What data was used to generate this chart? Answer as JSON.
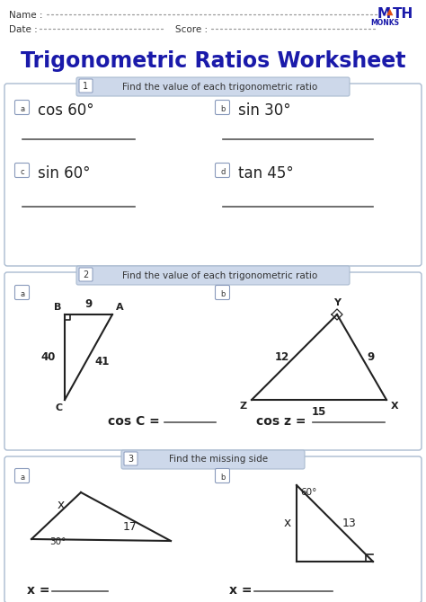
{
  "title": "Trigonometric Ratios Worksheet",
  "bg_color": "#ffffff",
  "section1_label": "1",
  "section1_text": "Find the value of each trigonometric ratio",
  "section2_label": "2",
  "section2_text": "Find the value of each trigonometric ratio",
  "section3_label": "3",
  "section3_text": "Find the missing side",
  "q1a": "cos 60°",
  "q1b": "sin 30°",
  "q1c": "sin 60°",
  "q1d": "tan 45°",
  "title_color": "#1a1aaa",
  "section_bg": "#c8d4e8",
  "section_border": "#8899bb",
  "text_color": "#222222",
  "monks_blue": "#1a1aaa",
  "monks_orange": "#e05018",
  "dot_color": "#999999",
  "line_color": "#555555",
  "tri_color": "#222222"
}
